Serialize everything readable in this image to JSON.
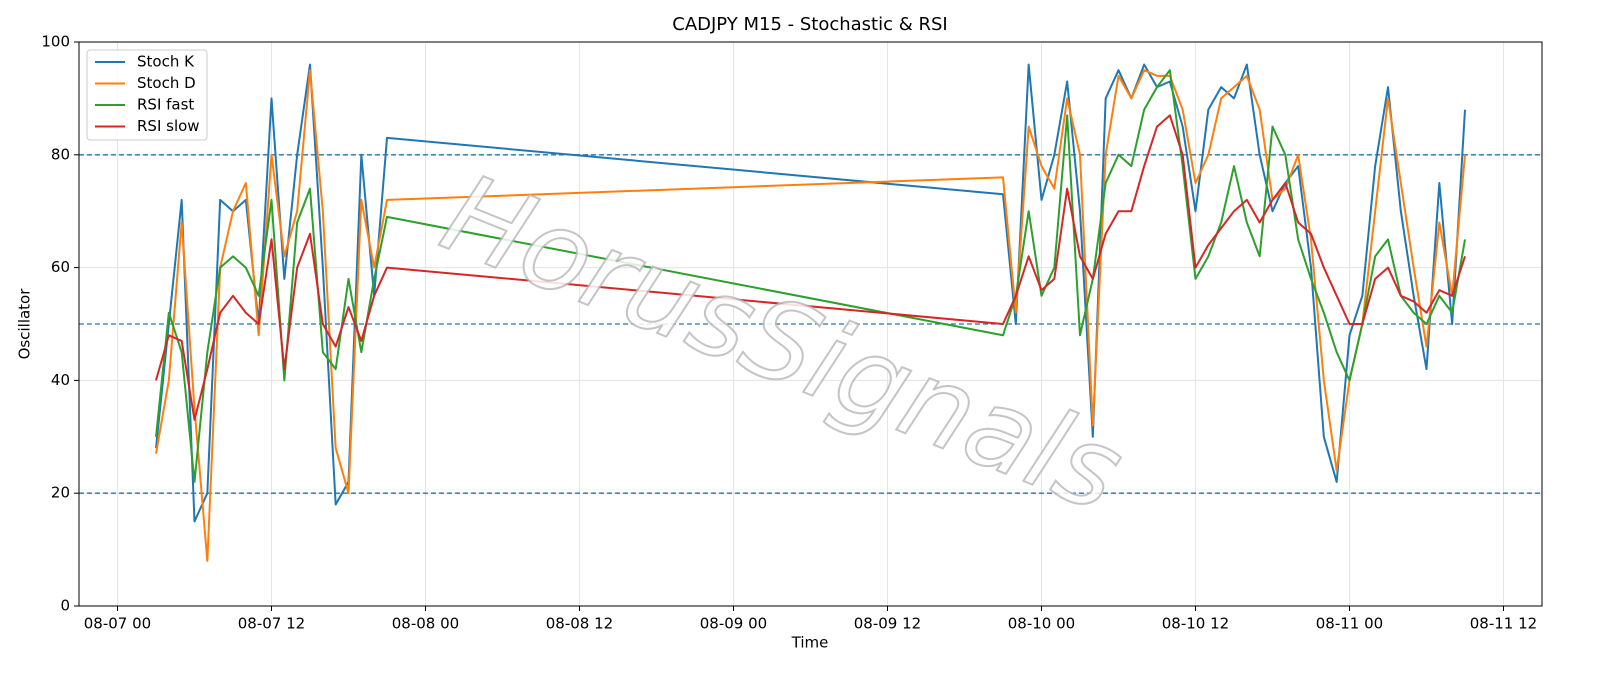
{
  "chart_data": {
    "type": "line",
    "title": "CADJPY M15 - Stochastic & RSI",
    "x_label": "Time",
    "y_label": "Oscillator",
    "watermark": "HorusSignals",
    "x": [
      "08-07 03",
      "08-07 04",
      "08-07 05",
      "08-07 06",
      "08-07 07",
      "08-07 08",
      "08-07 09",
      "08-07 10",
      "08-07 11",
      "08-07 12",
      "08-07 13",
      "08-07 14",
      "08-07 15",
      "08-07 16",
      "08-07 17",
      "08-07 18",
      "08-07 19",
      "08-07 20",
      "08-07 21",
      "08-09 21",
      "08-09 22",
      "08-09 23",
      "08-10 00",
      "08-10 01",
      "08-10 02",
      "08-10 03",
      "08-10 04",
      "08-10 05",
      "08-10 06",
      "08-10 07",
      "08-10 08",
      "08-10 09",
      "08-10 10",
      "08-10 11",
      "08-10 12",
      "08-10 13",
      "08-10 14",
      "08-10 15",
      "08-10 16",
      "08-10 17",
      "08-10 18",
      "08-10 19",
      "08-10 20",
      "08-10 21",
      "08-10 22",
      "08-10 23",
      "08-11 00",
      "08-11 01",
      "08-11 02",
      "08-11 03",
      "08-11 04",
      "08-11 05",
      "08-11 06",
      "08-11 07",
      "08-11 08",
      "08-11 09"
    ],
    "series": [
      {
        "name": "Stoch K",
        "color": "#1f77b4",
        "values": [
          28,
          50,
          72,
          15,
          20,
          72,
          70,
          72,
          50,
          90,
          58,
          80,
          96,
          60,
          18,
          22,
          80,
          55,
          83,
          73,
          50,
          96,
          72,
          80,
          93,
          70,
          30,
          90,
          95,
          90,
          96,
          92,
          93,
          85,
          70,
          88,
          92,
          90,
          96,
          80,
          70,
          75,
          78,
          60,
          30,
          22,
          48,
          55,
          78,
          92,
          70,
          55,
          42,
          75,
          50,
          88
        ]
      },
      {
        "name": "Stoch D",
        "color": "#ff7f0e",
        "values": [
          27,
          40,
          68,
          35,
          8,
          60,
          70,
          75,
          48,
          80,
          62,
          70,
          95,
          70,
          28,
          20,
          72,
          60,
          72,
          76,
          52,
          85,
          78,
          74,
          90,
          80,
          32,
          80,
          94,
          90,
          95,
          94,
          94,
          88,
          75,
          80,
          90,
          92,
          94,
          88,
          72,
          74,
          80,
          65,
          40,
          24,
          40,
          50,
          70,
          90,
          75,
          60,
          46,
          68,
          55,
          80
        ]
      },
      {
        "name": "RSI fast",
        "color": "#2ca02c",
        "values": [
          30,
          52,
          45,
          22,
          45,
          60,
          62,
          60,
          55,
          72,
          40,
          68,
          74,
          45,
          42,
          58,
          45,
          58,
          69,
          48,
          55,
          70,
          55,
          60,
          87,
          48,
          58,
          75,
          80,
          78,
          88,
          92,
          95,
          78,
          58,
          62,
          68,
          78,
          68,
          62,
          85,
          80,
          65,
          58,
          52,
          45,
          40,
          50,
          62,
          65,
          55,
          52,
          50,
          55,
          52,
          65
        ]
      },
      {
        "name": "RSI slow",
        "color": "#d62728",
        "values": [
          40,
          48,
          47,
          33,
          42,
          52,
          55,
          52,
          50,
          65,
          42,
          60,
          66,
          50,
          46,
          53,
          47,
          55,
          60,
          50,
          55,
          62,
          56,
          58,
          74,
          62,
          58,
          66,
          70,
          70,
          78,
          85,
          87,
          80,
          60,
          64,
          67,
          70,
          72,
          68,
          72,
          75,
          68,
          66,
          60,
          55,
          50,
          50,
          58,
          60,
          55,
          54,
          52,
          56,
          55,
          62
        ]
      }
    ],
    "xlim": [
      "08-06 21",
      "08-11 15"
    ],
    "xticks": [
      "08-07 00",
      "08-07 12",
      "08-08 00",
      "08-08 12",
      "08-09 00",
      "08-09 12",
      "08-10 00",
      "08-10 12",
      "08-11 00",
      "08-11 12"
    ],
    "ylim": [
      0,
      100
    ],
    "yticks": [
      0,
      20,
      40,
      60,
      80,
      100
    ],
    "reference_lines": [
      20,
      50,
      80
    ],
    "reference_color": "#1f77b4",
    "grid": true,
    "legend": "upper left"
  }
}
